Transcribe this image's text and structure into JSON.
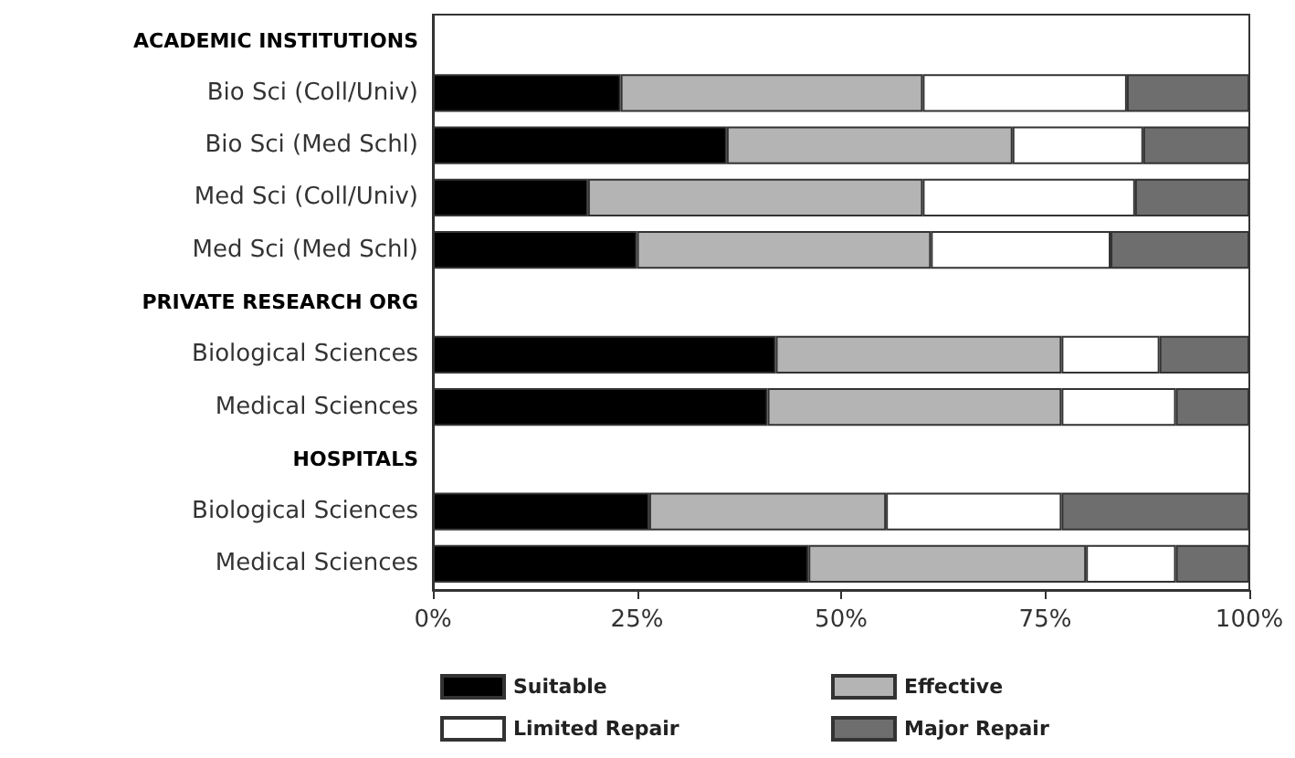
{
  "chart_data": {
    "type": "bar",
    "orientation": "horizontal",
    "stacked": true,
    "categories": [
      "ACADEMIC INSTITUTIONS",
      "Bio Sci (Coll/Univ)",
      "Bio Sci (Med Schl)",
      "Med Sci (Coll/Univ)",
      "Med Sci (Med Schl)",
      "PRIVATE RESEARCH ORG",
      "Biological Sciences",
      "Medical Sciences",
      "HOSPITALS",
      "Biological Sciences",
      "Medical Sciences"
    ],
    "series": [
      {
        "name": "Suitable",
        "color": "#000000",
        "values": [
          null,
          23,
          36,
          19,
          25,
          null,
          42,
          41,
          null,
          26.5,
          46
        ]
      },
      {
        "name": "Effective",
        "color": "#b4b4b4",
        "values": [
          null,
          37,
          35,
          41,
          36,
          null,
          35,
          36,
          null,
          29,
          34
        ]
      },
      {
        "name": "Limited Repair",
        "color": "#ffffff",
        "values": [
          null,
          25,
          16,
          26,
          22,
          null,
          12,
          14,
          null,
          21.5,
          11
        ]
      },
      {
        "name": "Major Repair",
        "color": "#6e6e6e",
        "values": [
          null,
          15,
          13,
          14,
          17,
          null,
          11,
          9,
          null,
          23,
          9
        ]
      }
    ],
    "xlim": [
      0,
      100
    ],
    "xticks": [
      {
        "value": 0,
        "label": "0%"
      },
      {
        "value": 25,
        "label": "25%"
      },
      {
        "value": 50,
        "label": "50%"
      },
      {
        "value": 75,
        "label": "75%"
      },
      {
        "value": 100,
        "label": "100%"
      }
    ],
    "grid": false,
    "legend": "bottom"
  }
}
